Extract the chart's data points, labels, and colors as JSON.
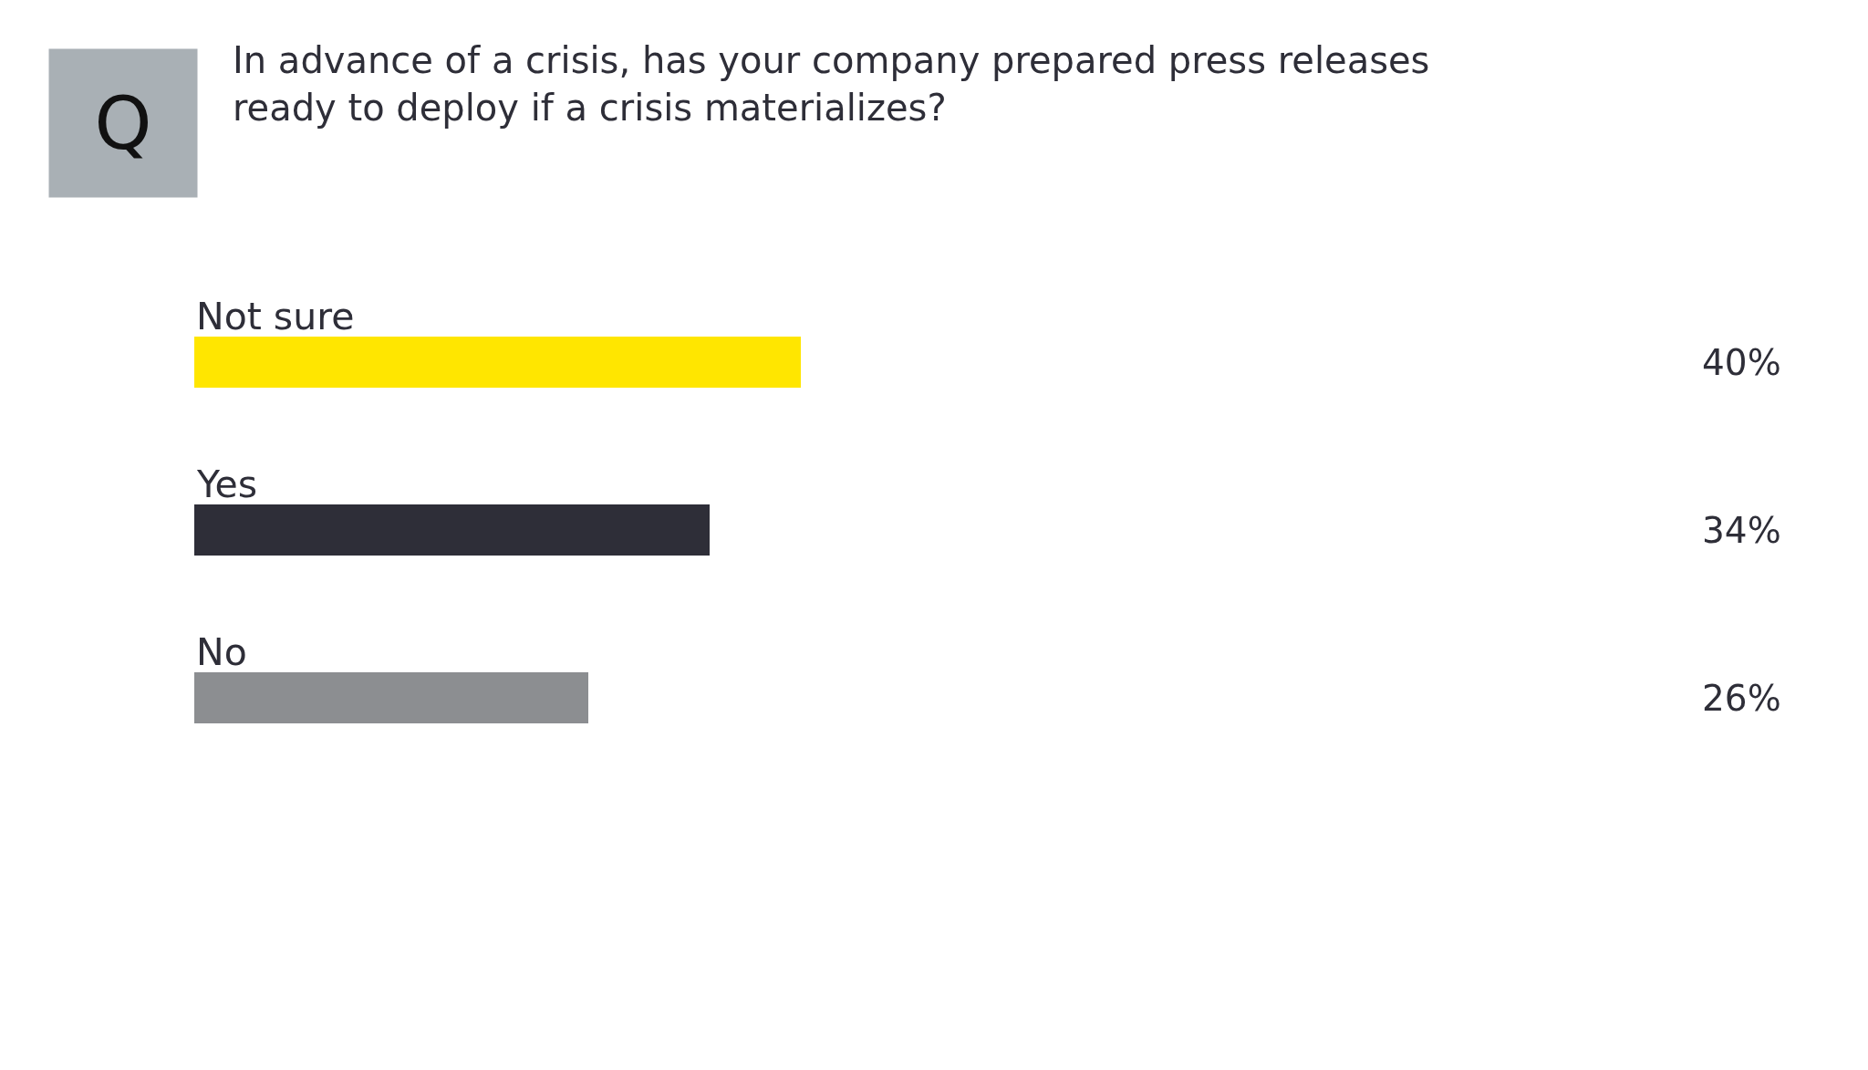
{
  "chart_data": {
    "type": "bar",
    "orientation": "horizontal",
    "title": "In advance of a crisis, has your company prepared press releases\nready to deploy if a crisis materializes?",
    "annotations": [
      "Q"
    ],
    "categories": [
      "Not sure",
      "Yes",
      "No"
    ],
    "values": [
      40,
      34,
      26
    ],
    "colors": [
      "#ffe600",
      "#2e2e38",
      "#8c8e91"
    ],
    "value_labels": [
      "40%",
      "34%",
      "26%"
    ],
    "tick_labels": false
  }
}
